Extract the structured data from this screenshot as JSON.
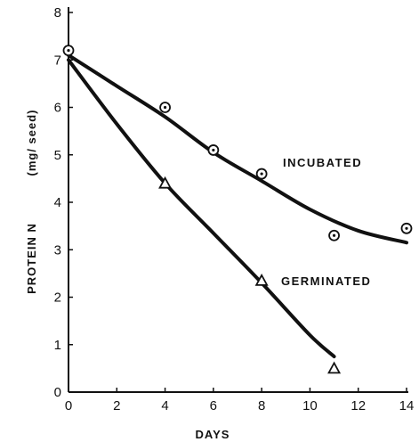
{
  "chart_data": {
    "type": "line",
    "title": "",
    "xlabel": "DAYS",
    "ylabel": "PROTEIN  N",
    "ylabel_unit": "(mg/ seed)",
    "xlim": [
      0,
      14
    ],
    "ylim": [
      0,
      8
    ],
    "x_ticks": [
      0,
      2,
      4,
      6,
      8,
      10,
      12,
      14
    ],
    "y_ticks": [
      0,
      1,
      2,
      3,
      4,
      5,
      6,
      7,
      8
    ],
    "grid": false,
    "legend": "none",
    "series": [
      {
        "name": "INCUBATED",
        "marker": "circle-dot",
        "points": [
          {
            "x": 0,
            "y": 7.2
          },
          {
            "x": 4,
            "y": 6.0
          },
          {
            "x": 6,
            "y": 5.1
          },
          {
            "x": 8,
            "y": 4.6
          },
          {
            "x": 11,
            "y": 3.3
          },
          {
            "x": 14,
            "y": 3.45
          }
        ],
        "curve": [
          {
            "x": 0,
            "y": 7.1
          },
          {
            "x": 2,
            "y": 6.45
          },
          {
            "x": 4,
            "y": 5.8
          },
          {
            "x": 6,
            "y": 5.05
          },
          {
            "x": 8,
            "y": 4.45
          },
          {
            "x": 10,
            "y": 3.85
          },
          {
            "x": 12,
            "y": 3.4
          },
          {
            "x": 14,
            "y": 3.15
          }
        ]
      },
      {
        "name": "GERMINATED",
        "marker": "triangle",
        "points": [
          {
            "x": 4,
            "y": 4.4
          },
          {
            "x": 8,
            "y": 2.35
          },
          {
            "x": 11,
            "y": 0.5
          }
        ],
        "curve": [
          {
            "x": 0,
            "y": 7.0
          },
          {
            "x": 2,
            "y": 5.65
          },
          {
            "x": 4,
            "y": 4.4
          },
          {
            "x": 6,
            "y": 3.35
          },
          {
            "x": 8,
            "y": 2.3
          },
          {
            "x": 10,
            "y": 1.2
          },
          {
            "x": 11,
            "y": 0.75
          }
        ]
      }
    ]
  }
}
